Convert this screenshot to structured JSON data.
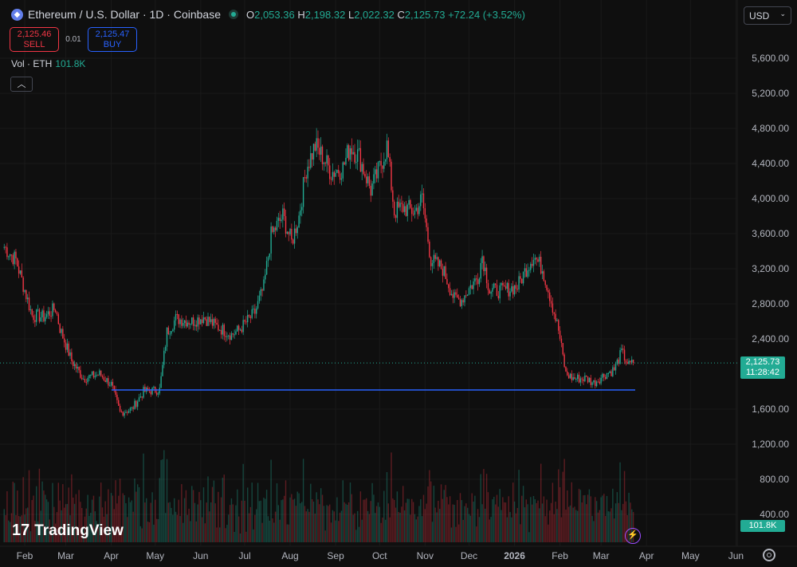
{
  "header": {
    "symbol": "Ethereum / U.S. Dollar · 1D · Coinbase",
    "o_label": "O",
    "open": "2,053.36",
    "h_label": "H",
    "high": "2,198.32",
    "l_label": "L",
    "low": "2,022.32",
    "c_label": "C",
    "close": "2,125.73",
    "change": "+72.24 (+3.52%)"
  },
  "trade": {
    "sell_price": "2,125.46",
    "sell_label": "SELL",
    "spread": "0.01",
    "buy_price": "2,125.47",
    "buy_label": "BUY"
  },
  "volume": {
    "label": "Vol · ETH",
    "value": "101.8K"
  },
  "currency": "USD",
  "collapse_icon": "chevron-up-icon",
  "logo": "TradingView",
  "last_price": {
    "price": "2,125.73",
    "countdown": "11:28:42"
  },
  "colors": {
    "up": "#22ab94",
    "down": "#f23645",
    "line": "#2962ff",
    "bg": "#0f0f0f"
  },
  "chart_data": {
    "type": "candlestick",
    "title": "Ethereum / U.S. Dollar · 1D · Coinbase",
    "y_ticks": [
      "5,600.00",
      "5,200.00",
      "4,800.00",
      "4,400.00",
      "4,000.00",
      "3,600.00",
      "3,200.00",
      "2,800.00",
      "2,400.00",
      "1,600.00",
      "1,200.00",
      "800.00",
      "400.00"
    ],
    "ylim": [
      400,
      5600
    ],
    "x_ticks": [
      "Feb",
      "Mar",
      "Apr",
      "May",
      "Jun",
      "Jul",
      "Aug",
      "Sep",
      "Oct",
      "Nov",
      "Dec",
      "2026",
      "Feb",
      "Mar",
      "Apr",
      "May",
      "Jun"
    ],
    "x_tick_days": [
      0,
      28,
      59,
      89,
      120,
      150,
      181,
      212,
      242,
      273,
      303,
      334,
      365,
      393,
      424,
      454,
      485
    ],
    "close_anchors_day_since_2025_02_01": [
      [
        -14,
        3450
      ],
      [
        -6,
        3300
      ],
      [
        5,
        2670
      ],
      [
        13,
        2650
      ],
      [
        21,
        2750
      ],
      [
        24,
        2520
      ],
      [
        32,
        2150
      ],
      [
        40,
        1950
      ],
      [
        51,
        2000
      ],
      [
        59,
        1880
      ],
      [
        65,
        1560
      ],
      [
        73,
        1600
      ],
      [
        81,
        1800
      ],
      [
        92,
        1820
      ],
      [
        97,
        2480
      ],
      [
        103,
        2630
      ],
      [
        114,
        2600
      ],
      [
        122,
        2650
      ],
      [
        130,
        2550
      ],
      [
        141,
        2450
      ],
      [
        146,
        2500
      ],
      [
        157,
        2700
      ],
      [
        163,
        2990
      ],
      [
        168,
        3580
      ],
      [
        176,
        3800
      ],
      [
        182,
        3500
      ],
      [
        187,
        3800
      ],
      [
        192,
        4350
      ],
      [
        198,
        4600
      ],
      [
        203,
        4480
      ],
      [
        209,
        4300
      ],
      [
        217,
        4350
      ],
      [
        222,
        4600
      ],
      [
        228,
        4480
      ],
      [
        236,
        4100
      ],
      [
        241,
        4300
      ],
      [
        247,
        4600
      ],
      [
        252,
        3850
      ],
      [
        258,
        3900
      ],
      [
        266,
        3850
      ],
      [
        271,
        4000
      ],
      [
        277,
        3300
      ],
      [
        285,
        3200
      ],
      [
        293,
        2850
      ],
      [
        298,
        2850
      ],
      [
        304,
        3000
      ],
      [
        309,
        3100
      ],
      [
        312,
        3350
      ],
      [
        317,
        2950
      ],
      [
        326,
        2950
      ],
      [
        336,
        3000
      ],
      [
        342,
        3200
      ],
      [
        347,
        3350
      ],
      [
        353,
        3200
      ],
      [
        358,
        2900
      ],
      [
        364,
        2500
      ],
      [
        369,
        2000
      ],
      [
        374,
        1950
      ],
      [
        383,
        1950
      ],
      [
        388,
        1900
      ],
      [
        396,
        2000
      ],
      [
        402,
        2050
      ],
      [
        407,
        2250
      ],
      [
        412,
        2100
      ],
      [
        415,
        2125.73
      ]
    ],
    "horizontal_line": 1818,
    "last_close": 2125.73
  }
}
